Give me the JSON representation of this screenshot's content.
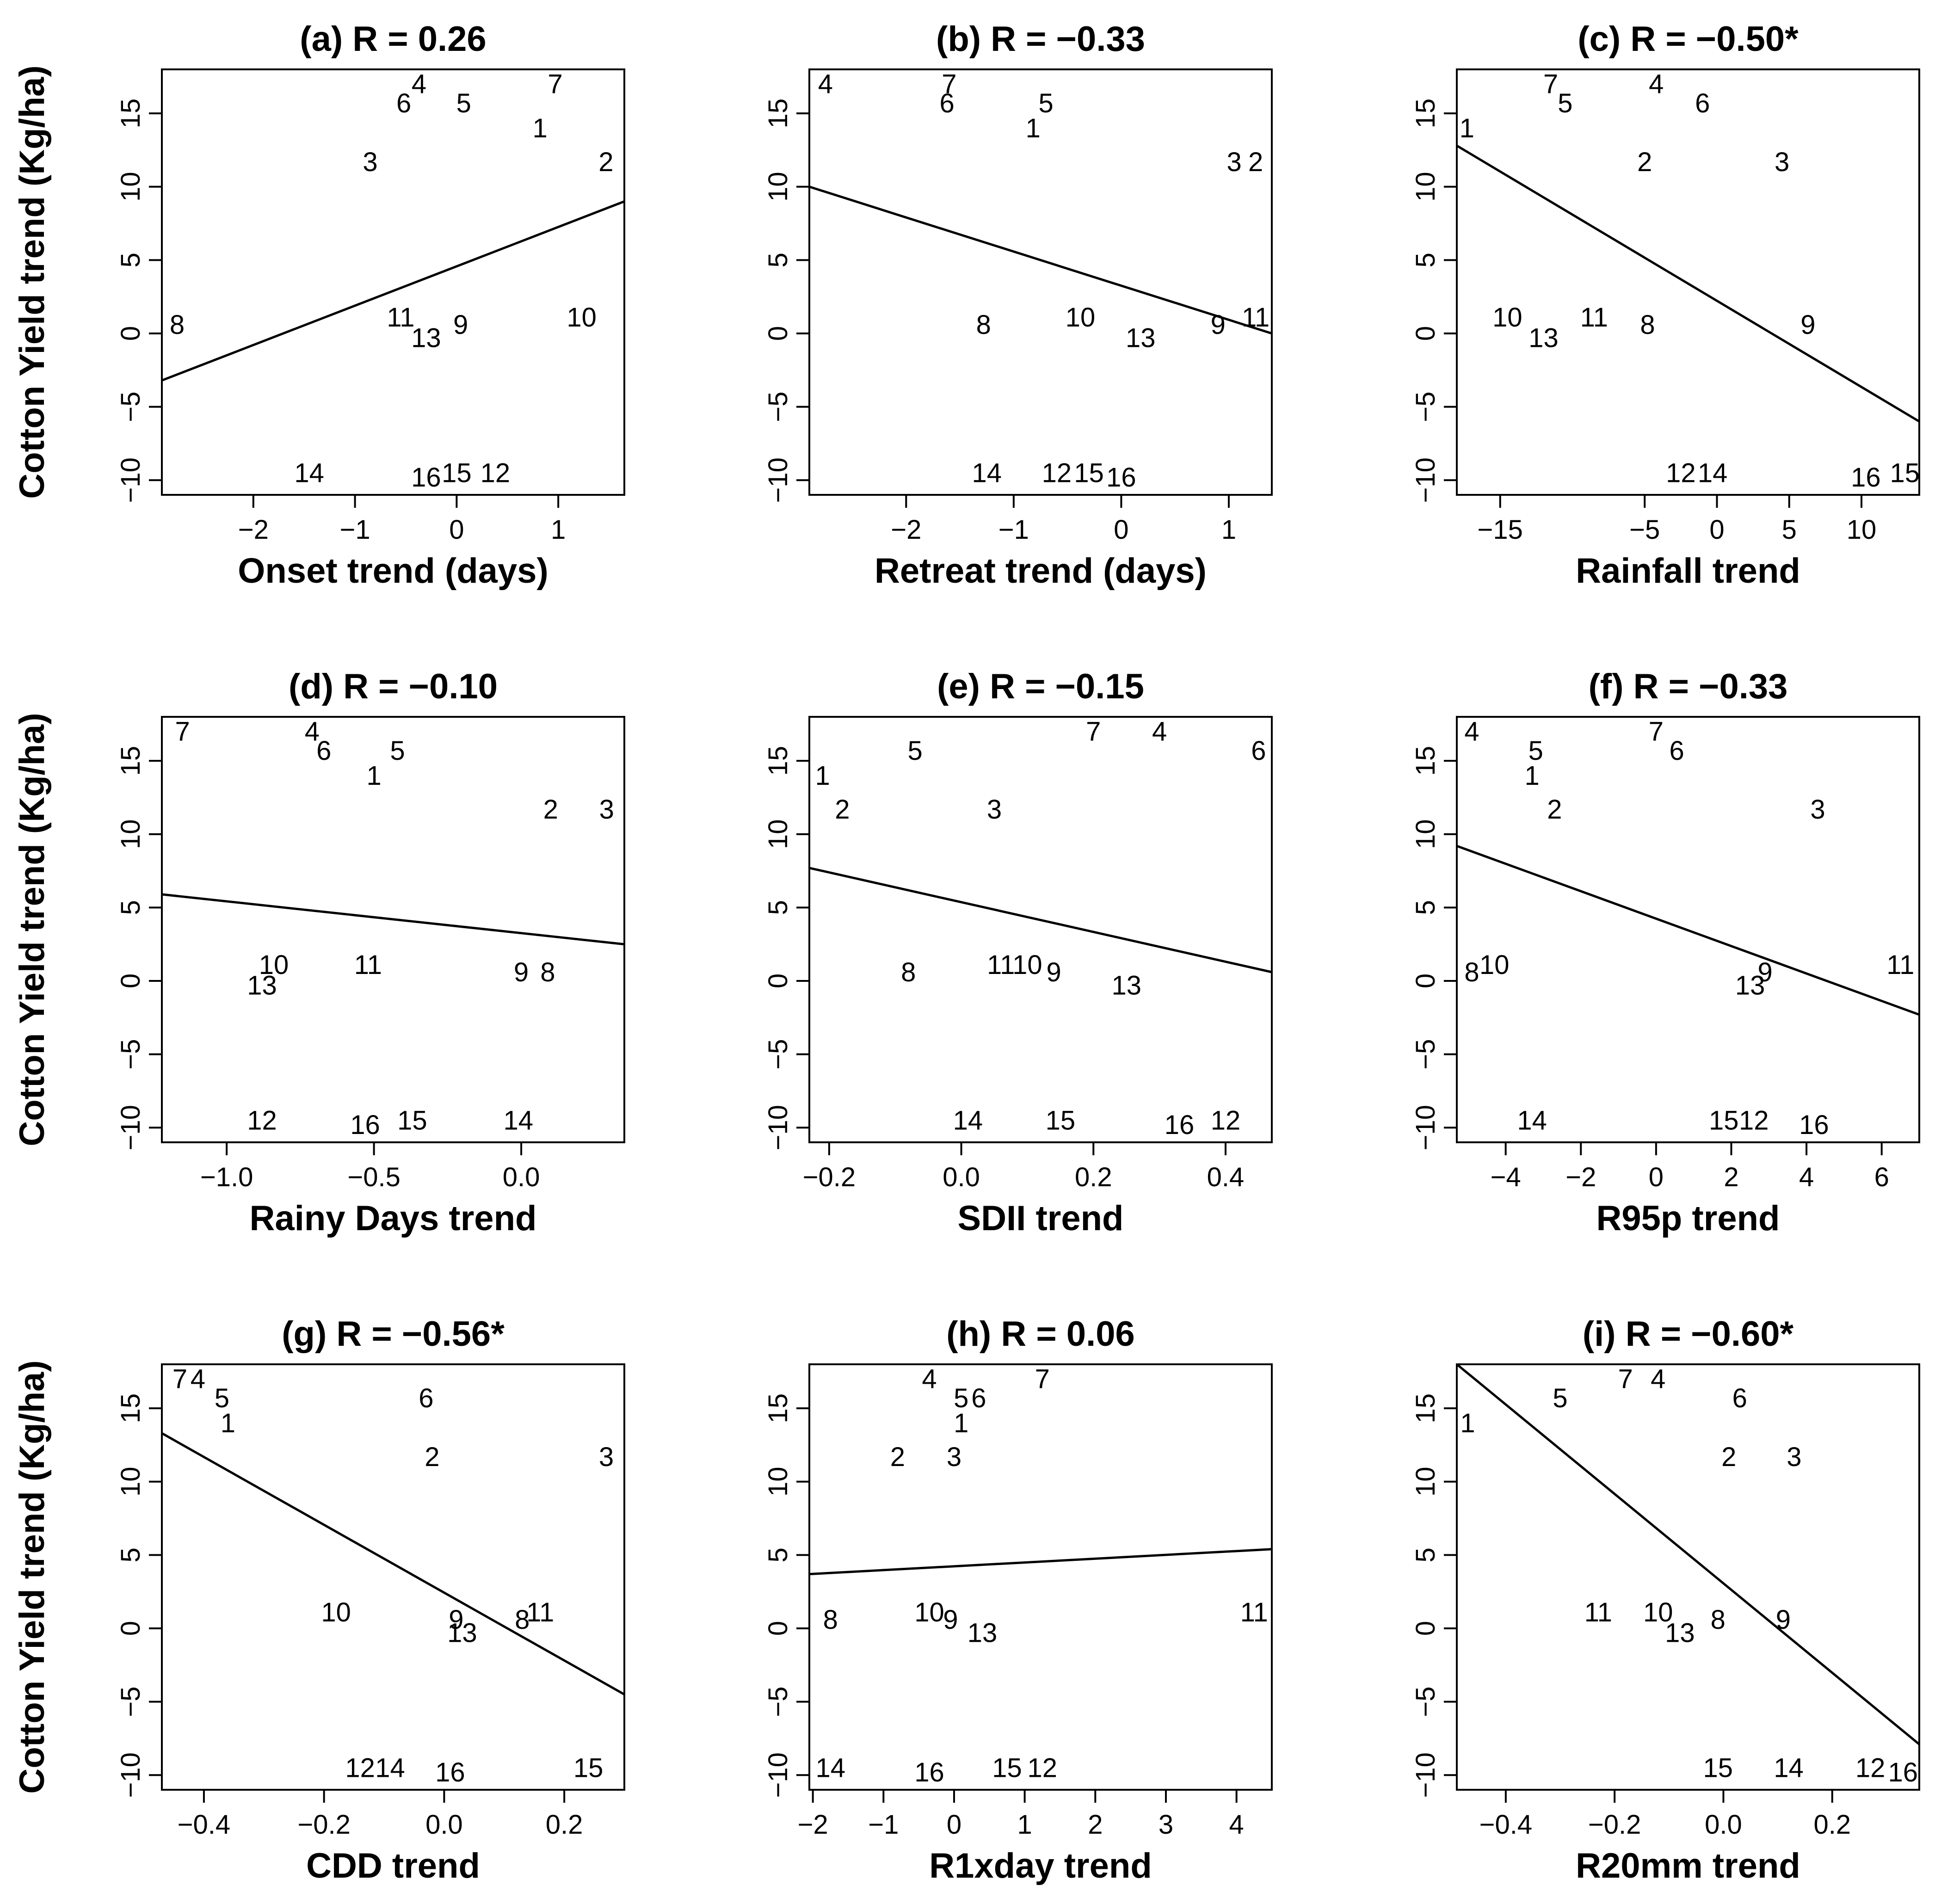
{
  "figure": {
    "ylabel": "Cotton Yield trend (Kg/ha)"
  },
  "chart_data": [
    {
      "type": "scatter",
      "title": "(a) R = 0.26",
      "xlabel": "Onset trend (days)",
      "xlim": [
        -2.9,
        1.65
      ],
      "ylim": [
        -11,
        18
      ],
      "xticks": [
        -2,
        -1,
        0,
        1
      ],
      "xticklabels": [
        "−2",
        "−1",
        "0",
        "1"
      ],
      "yticks": [
        -10,
        -5,
        0,
        5,
        10,
        15
      ],
      "yticklabels": [
        "−10",
        "−5",
        "0",
        "5",
        "10",
        "15"
      ],
      "fit": {
        "x": [
          -2.9,
          1.65
        ],
        "y": [
          -3.2,
          9.0
        ]
      },
      "points": [
        {
          "label": "1",
          "x": 0.82,
          "y": 14.0
        },
        {
          "label": "2",
          "x": 1.47,
          "y": 11.7
        },
        {
          "label": "3",
          "x": -0.85,
          "y": 11.7
        },
        {
          "label": "4",
          "x": -0.37,
          "y": 17.0
        },
        {
          "label": "5",
          "x": 0.07,
          "y": 15.7
        },
        {
          "label": "6",
          "x": -0.52,
          "y": 15.7
        },
        {
          "label": "7",
          "x": 0.97,
          "y": 17.0
        },
        {
          "label": "8",
          "x": -2.75,
          "y": 0.6
        },
        {
          "label": "9",
          "x": 0.04,
          "y": 0.6
        },
        {
          "label": "10",
          "x": 1.23,
          "y": 1.1
        },
        {
          "label": "11",
          "x": -0.55,
          "y": 1.1
        },
        {
          "label": "13",
          "x": -0.3,
          "y": -0.3
        },
        {
          "label": "14",
          "x": -1.45,
          "y": -9.5
        },
        {
          "label": "15",
          "x": 0.0,
          "y": -9.5
        },
        {
          "label": "16",
          "x": -0.3,
          "y": -9.8
        },
        {
          "label": "12",
          "x": 0.38,
          "y": -9.5
        }
      ]
    },
    {
      "type": "scatter",
      "title": "(b) R = −0.33",
      "xlabel": "Retreat trend (days)",
      "xlim": [
        -2.9,
        1.4
      ],
      "ylim": [
        -11,
        18
      ],
      "xticks": [
        -2,
        -1,
        0,
        1
      ],
      "xticklabels": [
        "−2",
        "−1",
        "0",
        "1"
      ],
      "yticks": [
        -10,
        -5,
        0,
        5,
        10,
        15
      ],
      "yticklabels": [
        "−10",
        "−5",
        "0",
        "5",
        "10",
        "15"
      ],
      "fit": {
        "x": [
          -2.9,
          1.4
        ],
        "y": [
          10.0,
          0.0
        ]
      },
      "points": [
        {
          "label": "4",
          "x": -2.75,
          "y": 17.0
        },
        {
          "label": "7",
          "x": -1.6,
          "y": 17.0
        },
        {
          "label": "6",
          "x": -1.62,
          "y": 15.7
        },
        {
          "label": "5",
          "x": -0.7,
          "y": 15.7
        },
        {
          "label": "1",
          "x": -0.82,
          "y": 14.0
        },
        {
          "label": "3",
          "x": 1.05,
          "y": 11.7
        },
        {
          "label": "2",
          "x": 1.25,
          "y": 11.7
        },
        {
          "label": "8",
          "x": -1.28,
          "y": 0.6
        },
        {
          "label": "10",
          "x": -0.38,
          "y": 1.1
        },
        {
          "label": "13",
          "x": 0.18,
          "y": -0.3
        },
        {
          "label": "9",
          "x": 0.9,
          "y": 0.6
        },
        {
          "label": "11",
          "x": 1.25,
          "y": 1.1
        },
        {
          "label": "14",
          "x": -1.25,
          "y": -9.5
        },
        {
          "label": "12",
          "x": -0.6,
          "y": -9.5
        },
        {
          "label": "15",
          "x": -0.3,
          "y": -9.5
        },
        {
          "label": "16",
          "x": 0.0,
          "y": -9.8
        }
      ]
    },
    {
      "type": "scatter",
      "title": "(c) R = −0.50*",
      "xlabel": "Rainfall trend",
      "xlim": [
        -18,
        14
      ],
      "ylim": [
        -11,
        18
      ],
      "xticks": [
        -15,
        -5,
        0,
        5,
        10
      ],
      "xticklabels": [
        "−15",
        "−5",
        "0",
        "5",
        "10"
      ],
      "yticks": [
        -10,
        -5,
        0,
        5,
        10,
        15
      ],
      "yticklabels": [
        "−10",
        "−5",
        "0",
        "5",
        "10",
        "15"
      ],
      "fit": {
        "x": [
          -18,
          14
        ],
        "y": [
          12.8,
          -6.0
        ]
      },
      "points": [
        {
          "label": "1",
          "x": -17.3,
          "y": 14.0
        },
        {
          "label": "7",
          "x": -11.5,
          "y": 17.0
        },
        {
          "label": "5",
          "x": -10.5,
          "y": 15.7
        },
        {
          "label": "4",
          "x": -4.2,
          "y": 17.0
        },
        {
          "label": "6",
          "x": -1.0,
          "y": 15.7
        },
        {
          "label": "2",
          "x": -5.0,
          "y": 11.7
        },
        {
          "label": "3",
          "x": 4.5,
          "y": 11.7
        },
        {
          "label": "10",
          "x": -14.5,
          "y": 1.1
        },
        {
          "label": "13",
          "x": -12.0,
          "y": -0.3
        },
        {
          "label": "11",
          "x": -8.5,
          "y": 1.1
        },
        {
          "label": "8",
          "x": -4.8,
          "y": 0.6
        },
        {
          "label": "9",
          "x": 6.3,
          "y": 0.6
        },
        {
          "label": "12",
          "x": -2.5,
          "y": -9.5
        },
        {
          "label": "14",
          "x": -0.3,
          "y": -9.5
        },
        {
          "label": "16",
          "x": 10.3,
          "y": -9.8
        },
        {
          "label": "15",
          "x": 13.0,
          "y": -9.5
        }
      ]
    },
    {
      "type": "scatter",
      "title": "(d) R = −0.10",
      "xlabel": "Rainy Days trend",
      "xlim": [
        -1.22,
        0.35
      ],
      "ylim": [
        -11,
        18
      ],
      "xticks": [
        -1.0,
        -0.5,
        0.0
      ],
      "xticklabels": [
        "−1.0",
        "−0.5",
        "0.0"
      ],
      "yticks": [
        -10,
        -5,
        0,
        5,
        10,
        15
      ],
      "yticklabels": [
        "−10",
        "−5",
        "0",
        "5",
        "10",
        "15"
      ],
      "fit": {
        "x": [
          -1.22,
          0.35
        ],
        "y": [
          5.9,
          2.5
        ]
      },
      "points": [
        {
          "label": "7",
          "x": -1.15,
          "y": 17.0
        },
        {
          "label": "4",
          "x": -0.71,
          "y": 17.0
        },
        {
          "label": "6",
          "x": -0.67,
          "y": 15.7
        },
        {
          "label": "5",
          "x": -0.42,
          "y": 15.7
        },
        {
          "label": "1",
          "x": -0.5,
          "y": 14.0
        },
        {
          "label": "2",
          "x": 0.1,
          "y": 11.7
        },
        {
          "label": "3",
          "x": 0.29,
          "y": 11.7
        },
        {
          "label": "10",
          "x": -0.84,
          "y": 1.1
        },
        {
          "label": "13",
          "x": -0.88,
          "y": -0.3
        },
        {
          "label": "11",
          "x": -0.52,
          "y": 1.1
        },
        {
          "label": "9",
          "x": 0.0,
          "y": 0.6
        },
        {
          "label": "8",
          "x": 0.09,
          "y": 0.6
        },
        {
          "label": "12",
          "x": -0.88,
          "y": -9.5
        },
        {
          "label": "16",
          "x": -0.53,
          "y": -9.8
        },
        {
          "label": "15",
          "x": -0.37,
          "y": -9.5
        },
        {
          "label": "14",
          "x": -0.01,
          "y": -9.5
        }
      ]
    },
    {
      "type": "scatter",
      "title": "(e) R = −0.15",
      "xlabel": "SDII trend",
      "xlim": [
        -0.23,
        0.47
      ],
      "ylim": [
        -11,
        18
      ],
      "xticks": [
        -0.2,
        0.0,
        0.2,
        0.4
      ],
      "xticklabels": [
        "−0.2",
        "0.0",
        "0.2",
        "0.4"
      ],
      "yticks": [
        -10,
        -5,
        0,
        5,
        10,
        15
      ],
      "yticklabels": [
        "−10",
        "−5",
        "0",
        "5",
        "10",
        "15"
      ],
      "fit": {
        "x": [
          -0.23,
          0.47
        ],
        "y": [
          7.7,
          0.6
        ]
      },
      "points": [
        {
          "label": "1",
          "x": -0.21,
          "y": 14.0
        },
        {
          "label": "2",
          "x": -0.18,
          "y": 11.7
        },
        {
          "label": "5",
          "x": -0.07,
          "y": 15.7
        },
        {
          "label": "3",
          "x": 0.05,
          "y": 11.7
        },
        {
          "label": "7",
          "x": 0.2,
          "y": 17.0
        },
        {
          "label": "4",
          "x": 0.3,
          "y": 17.0
        },
        {
          "label": "6",
          "x": 0.45,
          "y": 15.7
        },
        {
          "label": "8",
          "x": -0.08,
          "y": 0.6
        },
        {
          "label": "11",
          "x": 0.06,
          "y": 1.1
        },
        {
          "label": "10",
          "x": 0.1,
          "y": 1.1
        },
        {
          "label": "9",
          "x": 0.14,
          "y": 0.6
        },
        {
          "label": "13",
          "x": 0.25,
          "y": -0.3
        },
        {
          "label": "14",
          "x": 0.01,
          "y": -9.5
        },
        {
          "label": "15",
          "x": 0.15,
          "y": -9.5
        },
        {
          "label": "16",
          "x": 0.33,
          "y": -9.8
        },
        {
          "label": "12",
          "x": 0.4,
          "y": -9.5
        }
      ]
    },
    {
      "type": "scatter",
      "title": "(f) R = −0.33",
      "xlabel": "R95p trend",
      "xlim": [
        -5.3,
        7.0
      ],
      "ylim": [
        -11,
        18
      ],
      "xticks": [
        -4,
        -2,
        0,
        2,
        4,
        6
      ],
      "xticklabels": [
        "−4",
        "−2",
        "0",
        "2",
        "4",
        "6"
      ],
      "yticks": [
        -10,
        -5,
        0,
        5,
        10,
        15
      ],
      "yticklabels": [
        "−10",
        "−5",
        "0",
        "5",
        "10",
        "15"
      ],
      "fit": {
        "x": [
          -5.3,
          7.0
        ],
        "y": [
          9.2,
          -2.3
        ]
      },
      "points": [
        {
          "label": "4",
          "x": -4.9,
          "y": 17.0
        },
        {
          "label": "5",
          "x": -3.2,
          "y": 15.7
        },
        {
          "label": "1",
          "x": -3.3,
          "y": 14.0
        },
        {
          "label": "2",
          "x": -2.7,
          "y": 11.7
        },
        {
          "label": "7",
          "x": 0.0,
          "y": 17.0
        },
        {
          "label": "6",
          "x": 0.55,
          "y": 15.7
        },
        {
          "label": "3",
          "x": 4.3,
          "y": 11.7
        },
        {
          "label": "8",
          "x": -4.9,
          "y": 0.6
        },
        {
          "label": "10",
          "x": -4.3,
          "y": 1.1
        },
        {
          "label": "13",
          "x": 2.5,
          "y": -0.3
        },
        {
          "label": "9",
          "x": 2.9,
          "y": 0.6
        },
        {
          "label": "11",
          "x": 6.5,
          "y": 1.1
        },
        {
          "label": "14",
          "x": -3.3,
          "y": -9.5
        },
        {
          "label": "15",
          "x": 1.8,
          "y": -9.5
        },
        {
          "label": "12",
          "x": 2.6,
          "y": -9.5
        },
        {
          "label": "16",
          "x": 4.2,
          "y": -9.8
        }
      ]
    },
    {
      "type": "scatter",
      "title": "(g) R = −0.56*",
      "xlabel": "CDD trend",
      "xlim": [
        -0.47,
        0.3
      ],
      "ylim": [
        -11,
        18
      ],
      "xticks": [
        -0.4,
        -0.2,
        0.0,
        0.2
      ],
      "xticklabels": [
        "−0.4",
        "−0.2",
        "0.0",
        "0.2"
      ],
      "yticks": [
        -10,
        -5,
        0,
        5,
        10,
        15
      ],
      "yticklabels": [
        "−10",
        "−5",
        "0",
        "5",
        "10",
        "15"
      ],
      "fit": {
        "x": [
          -0.47,
          0.3
        ],
        "y": [
          13.3,
          -4.5
        ]
      },
      "points": [
        {
          "label": "7",
          "x": -0.44,
          "y": 17.0
        },
        {
          "label": "4",
          "x": -0.41,
          "y": 17.0
        },
        {
          "label": "5",
          "x": -0.37,
          "y": 15.7
        },
        {
          "label": "1",
          "x": -0.36,
          "y": 14.0
        },
        {
          "label": "6",
          "x": -0.03,
          "y": 15.7
        },
        {
          "label": "2",
          "x": -0.02,
          "y": 11.7
        },
        {
          "label": "3",
          "x": 0.27,
          "y": 11.7
        },
        {
          "label": "10",
          "x": -0.18,
          "y": 1.1
        },
        {
          "label": "9",
          "x": 0.02,
          "y": 0.6
        },
        {
          "label": "13",
          "x": 0.03,
          "y": -0.3
        },
        {
          "label": "8",
          "x": 0.13,
          "y": 0.6
        },
        {
          "label": "11",
          "x": 0.16,
          "y": 1.1
        },
        {
          "label": "12",
          "x": -0.14,
          "y": -9.5
        },
        {
          "label": "14",
          "x": -0.09,
          "y": -9.5
        },
        {
          "label": "16",
          "x": 0.01,
          "y": -9.8
        },
        {
          "label": "15",
          "x": 0.24,
          "y": -9.5
        }
      ]
    },
    {
      "type": "scatter",
      "title": "(h) R = 0.06",
      "xlabel": "R1xday trend",
      "xlim": [
        -2.05,
        4.5
      ],
      "ylim": [
        -11,
        18
      ],
      "xticks": [
        -2,
        -1,
        0,
        1,
        2,
        3,
        4
      ],
      "xticklabels": [
        "−2",
        "−1",
        "0",
        "1",
        "2",
        "3",
        "4"
      ],
      "yticks": [
        -10,
        -5,
        0,
        5,
        10,
        15
      ],
      "yticklabels": [
        "−10",
        "−5",
        "0",
        "5",
        "10",
        "15"
      ],
      "fit": {
        "x": [
          -2.05,
          4.5
        ],
        "y": [
          3.7,
          5.4
        ]
      },
      "points": [
        {
          "label": "4",
          "x": -0.35,
          "y": 17.0
        },
        {
          "label": "7",
          "x": 1.25,
          "y": 17.0
        },
        {
          "label": "5",
          "x": 0.1,
          "y": 15.7
        },
        {
          "label": "6",
          "x": 0.35,
          "y": 15.7
        },
        {
          "label": "1",
          "x": 0.1,
          "y": 14.0
        },
        {
          "label": "2",
          "x": -0.8,
          "y": 11.7
        },
        {
          "label": "3",
          "x": 0.0,
          "y": 11.7
        },
        {
          "label": "8",
          "x": -1.75,
          "y": 0.6
        },
        {
          "label": "10",
          "x": -0.35,
          "y": 1.1
        },
        {
          "label": "9",
          "x": -0.05,
          "y": 0.6
        },
        {
          "label": "13",
          "x": 0.4,
          "y": -0.3
        },
        {
          "label": "11",
          "x": 4.25,
          "y": 1.1
        },
        {
          "label": "14",
          "x": -1.75,
          "y": -9.5
        },
        {
          "label": "16",
          "x": -0.35,
          "y": -9.8
        },
        {
          "label": "15",
          "x": 0.75,
          "y": -9.5
        },
        {
          "label": "12",
          "x": 1.25,
          "y": -9.5
        }
      ]
    },
    {
      "type": "scatter",
      "title": "(i) R = −0.60*",
      "xlabel": "R20mm trend",
      "xlim": [
        -0.49,
        0.36
      ],
      "ylim": [
        -11,
        18
      ],
      "xticks": [
        -0.4,
        -0.2,
        0.0,
        0.2
      ],
      "xticklabels": [
        "−0.4",
        "−0.2",
        "0.0",
        "0.2"
      ],
      "yticks": [
        -10,
        -5,
        0,
        5,
        10,
        15
      ],
      "yticklabels": [
        "−10",
        "−5",
        "0",
        "5",
        "10",
        "15"
      ],
      "fit": {
        "x": [
          -0.49,
          0.36
        ],
        "y": [
          18.0,
          -7.9
        ]
      },
      "points": [
        {
          "label": "1",
          "x": -0.47,
          "y": 14.0
        },
        {
          "label": "5",
          "x": -0.3,
          "y": 15.7
        },
        {
          "label": "7",
          "x": -0.18,
          "y": 17.0
        },
        {
          "label": "4",
          "x": -0.12,
          "y": 17.0
        },
        {
          "label": "6",
          "x": 0.03,
          "y": 15.7
        },
        {
          "label": "2",
          "x": 0.01,
          "y": 11.7
        },
        {
          "label": "3",
          "x": 0.13,
          "y": 11.7
        },
        {
          "label": "11",
          "x": -0.23,
          "y": 1.1
        },
        {
          "label": "10",
          "x": -0.12,
          "y": 1.1
        },
        {
          "label": "13",
          "x": -0.08,
          "y": -0.3
        },
        {
          "label": "8",
          "x": -0.01,
          "y": 0.6
        },
        {
          "label": "9",
          "x": 0.11,
          "y": 0.6
        },
        {
          "label": "15",
          "x": -0.01,
          "y": -9.5
        },
        {
          "label": "14",
          "x": 0.12,
          "y": -9.5
        },
        {
          "label": "12",
          "x": 0.27,
          "y": -9.5
        },
        {
          "label": "16",
          "x": 0.33,
          "y": -9.8
        }
      ]
    }
  ]
}
